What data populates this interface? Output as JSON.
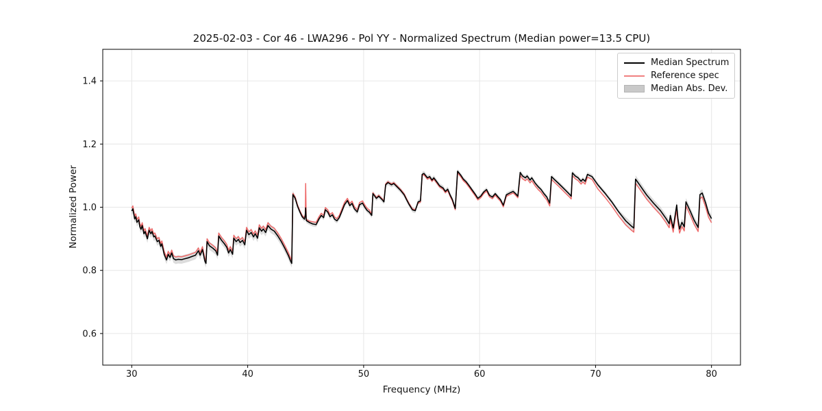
{
  "chart_data": {
    "type": "line",
    "title": "2025-02-03 - Cor 46 - LWA296 - Pol YY - Normalized Spectrum (Median power=13.5 CPU)",
    "xlabel": "Frequency (MHz)",
    "ylabel": "Normalized Power",
    "xlim": [
      27.5,
      82.5
    ],
    "ylim": [
      0.5,
      1.5
    ],
    "xticks": [
      "30",
      "40",
      "50",
      "60",
      "70",
      "80"
    ],
    "xtick_values": [
      30,
      40,
      50,
      60,
      70,
      80
    ],
    "yticks": [
      "0.6",
      "0.8",
      "1.0",
      "1.2",
      "1.4"
    ],
    "ytick_values": [
      0.6,
      0.8,
      1.0,
      1.2,
      1.4
    ],
    "grid": true,
    "legend_position": "upper right",
    "colors": {
      "median": "#000000",
      "reference": "#ee6a6a",
      "band": "#9c9c9c",
      "grid": "#e6e6e6",
      "spine": "#000000"
    },
    "legend": [
      {
        "label": "Median Spectrum",
        "swatch": "line",
        "color": "#000000"
      },
      {
        "label": "Reference spec",
        "swatch": "line",
        "color": "#f08080"
      },
      {
        "label": "Median Abs. Dev.",
        "swatch": "patch",
        "color": "#c9c9c9"
      }
    ],
    "series": [
      {
        "name": "Median Spectrum",
        "type": "line",
        "points": [
          [
            30.0,
            0.988
          ],
          [
            30.1,
            0.995
          ],
          [
            30.25,
            0.963
          ],
          [
            30.35,
            0.97
          ],
          [
            30.45,
            0.952
          ],
          [
            30.6,
            0.96
          ],
          [
            30.7,
            0.938
          ],
          [
            30.8,
            0.93
          ],
          [
            30.9,
            0.942
          ],
          [
            31.05,
            0.916
          ],
          [
            31.15,
            0.923
          ],
          [
            31.35,
            0.9
          ],
          [
            31.5,
            0.927
          ],
          [
            31.65,
            0.916
          ],
          [
            31.75,
            0.923
          ],
          [
            31.9,
            0.906
          ],
          [
            32.0,
            0.909
          ],
          [
            32.2,
            0.891
          ],
          [
            32.35,
            0.895
          ],
          [
            32.5,
            0.876
          ],
          [
            32.6,
            0.884
          ],
          [
            32.8,
            0.851
          ],
          [
            33.0,
            0.833
          ],
          [
            33.15,
            0.851
          ],
          [
            33.3,
            0.841
          ],
          [
            33.45,
            0.855
          ],
          [
            33.6,
            0.837
          ],
          [
            33.8,
            0.833
          ],
          [
            34.0,
            0.835
          ],
          [
            34.3,
            0.834
          ],
          [
            34.6,
            0.837
          ],
          [
            34.9,
            0.84
          ],
          [
            35.2,
            0.844
          ],
          [
            35.5,
            0.848
          ],
          [
            35.75,
            0.862
          ],
          [
            35.9,
            0.848
          ],
          [
            36.1,
            0.866
          ],
          [
            36.3,
            0.83
          ],
          [
            36.4,
            0.822
          ],
          [
            36.5,
            0.891
          ],
          [
            36.7,
            0.878
          ],
          [
            37.0,
            0.87
          ],
          [
            37.25,
            0.862
          ],
          [
            37.4,
            0.848
          ],
          [
            37.5,
            0.909
          ],
          [
            37.75,
            0.895
          ],
          [
            38.0,
            0.884
          ],
          [
            38.2,
            0.873
          ],
          [
            38.35,
            0.855
          ],
          [
            38.5,
            0.866
          ],
          [
            38.7,
            0.851
          ],
          [
            38.8,
            0.902
          ],
          [
            39.0,
            0.891
          ],
          [
            39.2,
            0.898
          ],
          [
            39.35,
            0.888
          ],
          [
            39.55,
            0.895
          ],
          [
            39.75,
            0.881
          ],
          [
            39.9,
            0.927
          ],
          [
            40.1,
            0.913
          ],
          [
            40.3,
            0.92
          ],
          [
            40.5,
            0.906
          ],
          [
            40.65,
            0.916
          ],
          [
            40.85,
            0.902
          ],
          [
            41.0,
            0.935
          ],
          [
            41.2,
            0.924
          ],
          [
            41.35,
            0.931
          ],
          [
            41.55,
            0.92
          ],
          [
            41.75,
            0.942
          ],
          [
            42.0,
            0.931
          ],
          [
            42.3,
            0.924
          ],
          [
            42.6,
            0.909
          ],
          [
            42.9,
            0.891
          ],
          [
            43.2,
            0.87
          ],
          [
            43.5,
            0.848
          ],
          [
            43.7,
            0.83
          ],
          [
            43.8,
            0.822
          ],
          [
            43.9,
            1.04
          ],
          [
            44.1,
            1.028
          ],
          [
            44.3,
            1.003
          ],
          [
            44.5,
            0.985
          ],
          [
            44.7,
            0.97
          ],
          [
            44.9,
            0.962
          ],
          [
            44.97,
            0.975
          ],
          [
            45.0,
            0.998
          ],
          [
            45.05,
            0.958
          ],
          [
            45.3,
            0.952
          ],
          [
            45.6,
            0.947
          ],
          [
            45.9,
            0.945
          ],
          [
            46.15,
            0.963
          ],
          [
            46.35,
            0.974
          ],
          [
            46.55,
            0.967
          ],
          [
            46.7,
            0.992
          ],
          [
            46.9,
            0.985
          ],
          [
            47.1,
            0.97
          ],
          [
            47.3,
            0.976
          ],
          [
            47.5,
            0.962
          ],
          [
            47.7,
            0.957
          ],
          [
            47.9,
            0.967
          ],
          [
            48.1,
            0.985
          ],
          [
            48.35,
            1.008
          ],
          [
            48.6,
            1.021
          ],
          [
            48.8,
            1.005
          ],
          [
            49.0,
            1.012
          ],
          [
            49.2,
            0.995
          ],
          [
            49.45,
            0.985
          ],
          [
            49.65,
            1.008
          ],
          [
            49.9,
            1.013
          ],
          [
            50.1,
            1.0
          ],
          [
            50.3,
            0.99
          ],
          [
            50.5,
            0.984
          ],
          [
            50.7,
            0.974
          ],
          [
            50.8,
            1.043
          ],
          [
            51.1,
            1.028
          ],
          [
            51.3,
            1.035
          ],
          [
            51.6,
            1.024
          ],
          [
            51.75,
            1.017
          ],
          [
            51.9,
            1.071
          ],
          [
            52.1,
            1.078
          ],
          [
            52.4,
            1.071
          ],
          [
            52.6,
            1.075
          ],
          [
            52.9,
            1.064
          ],
          [
            53.2,
            1.053
          ],
          [
            53.5,
            1.039
          ],
          [
            53.7,
            1.024
          ],
          [
            53.9,
            1.01
          ],
          [
            54.2,
            0.992
          ],
          [
            54.45,
            0.989
          ],
          [
            54.7,
            1.017
          ],
          [
            54.9,
            1.02
          ],
          [
            55.05,
            1.104
          ],
          [
            55.2,
            1.107
          ],
          [
            55.5,
            1.093
          ],
          [
            55.7,
            1.097
          ],
          [
            55.9,
            1.086
          ],
          [
            56.05,
            1.093
          ],
          [
            56.35,
            1.078
          ],
          [
            56.55,
            1.068
          ],
          [
            56.85,
            1.061
          ],
          [
            57.05,
            1.05
          ],
          [
            57.25,
            1.057
          ],
          [
            57.45,
            1.039
          ],
          [
            57.65,
            1.024
          ],
          [
            57.9,
            0.996
          ],
          [
            58.1,
            1.114
          ],
          [
            58.4,
            1.1
          ],
          [
            58.6,
            1.089
          ],
          [
            58.85,
            1.08
          ],
          [
            59.1,
            1.068
          ],
          [
            59.35,
            1.055
          ],
          [
            59.6,
            1.042
          ],
          [
            59.85,
            1.028
          ],
          [
            60.1,
            1.035
          ],
          [
            60.35,
            1.048
          ],
          [
            60.6,
            1.056
          ],
          [
            60.85,
            1.038
          ],
          [
            61.1,
            1.032
          ],
          [
            61.35,
            1.043
          ],
          [
            61.6,
            1.032
          ],
          [
            61.8,
            1.024
          ],
          [
            62.05,
            1.006
          ],
          [
            62.3,
            1.039
          ],
          [
            62.6,
            1.045
          ],
          [
            62.9,
            1.05
          ],
          [
            63.1,
            1.043
          ],
          [
            63.3,
            1.035
          ],
          [
            63.5,
            1.11
          ],
          [
            63.7,
            1.099
          ],
          [
            63.95,
            1.093
          ],
          [
            64.1,
            1.099
          ],
          [
            64.35,
            1.086
          ],
          [
            64.5,
            1.093
          ],
          [
            64.8,
            1.076
          ],
          [
            65.05,
            1.065
          ],
          [
            65.3,
            1.056
          ],
          [
            65.55,
            1.043
          ],
          [
            65.8,
            1.032
          ],
          [
            66.05,
            1.013
          ],
          [
            66.2,
            1.097
          ],
          [
            66.5,
            1.086
          ],
          [
            66.8,
            1.076
          ],
          [
            67.1,
            1.065
          ],
          [
            67.4,
            1.054
          ],
          [
            67.7,
            1.043
          ],
          [
            67.9,
            1.035
          ],
          [
            68.0,
            1.109
          ],
          [
            68.25,
            1.099
          ],
          [
            68.5,
            1.093
          ],
          [
            68.75,
            1.082
          ],
          [
            68.9,
            1.089
          ],
          [
            69.1,
            1.082
          ],
          [
            69.3,
            1.104
          ],
          [
            69.7,
            1.097
          ],
          [
            70.2,
            1.071
          ],
          [
            70.8,
            1.045
          ],
          [
            71.4,
            1.017
          ],
          [
            72.0,
            0.985
          ],
          [
            72.6,
            0.957
          ],
          [
            73.1,
            0.94
          ],
          [
            73.3,
            0.934
          ],
          [
            73.45,
            1.089
          ],
          [
            73.8,
            1.071
          ],
          [
            74.4,
            1.039
          ],
          [
            75.0,
            1.013
          ],
          [
            75.6,
            0.989
          ],
          [
            76.1,
            0.963
          ],
          [
            76.35,
            0.948
          ],
          [
            76.45,
            0.974
          ],
          [
            76.7,
            0.934
          ],
          [
            77.0,
            1.007
          ],
          [
            77.1,
            0.965
          ],
          [
            77.25,
            0.931
          ],
          [
            77.45,
            0.952
          ],
          [
            77.65,
            0.938
          ],
          [
            77.8,
            1.017
          ],
          [
            78.2,
            0.985
          ],
          [
            78.5,
            0.959
          ],
          [
            78.85,
            0.936
          ],
          [
            79.0,
            1.04
          ],
          [
            79.2,
            1.045
          ],
          [
            79.5,
            1.013
          ],
          [
            79.75,
            0.981
          ],
          [
            80.0,
            0.964
          ]
        ]
      },
      {
        "name": "Reference spec",
        "type": "line",
        "derived": {
          "from": "Median Spectrum",
          "delta_segments": [
            [
              27.5,
              43.85,
              0.009
            ],
            [
              43.85,
              45.5,
              0.004
            ],
            [
              45.5,
              50.5,
              0.007
            ],
            [
              50.5,
              54.5,
              0.003
            ],
            [
              54.5,
              58.0,
              -0.004
            ],
            [
              58.0,
              63.4,
              -0.005
            ],
            [
              63.4,
              70.0,
              -0.009
            ],
            [
              70.0,
              82.5,
              -0.013
            ]
          ],
          "overrides": [
            [
              45.0,
              1.075
            ]
          ]
        }
      },
      {
        "name": "Median Abs. Dev.",
        "type": "band",
        "around": "Median Spectrum",
        "halfwidth_segments": [
          [
            27.5,
            44.0,
            0.013
          ],
          [
            44.0,
            58.0,
            0.008
          ],
          [
            58.0,
            72.0,
            0.007
          ],
          [
            72.0,
            82.5,
            0.012
          ]
        ],
        "opacity": 0.35
      }
    ]
  }
}
